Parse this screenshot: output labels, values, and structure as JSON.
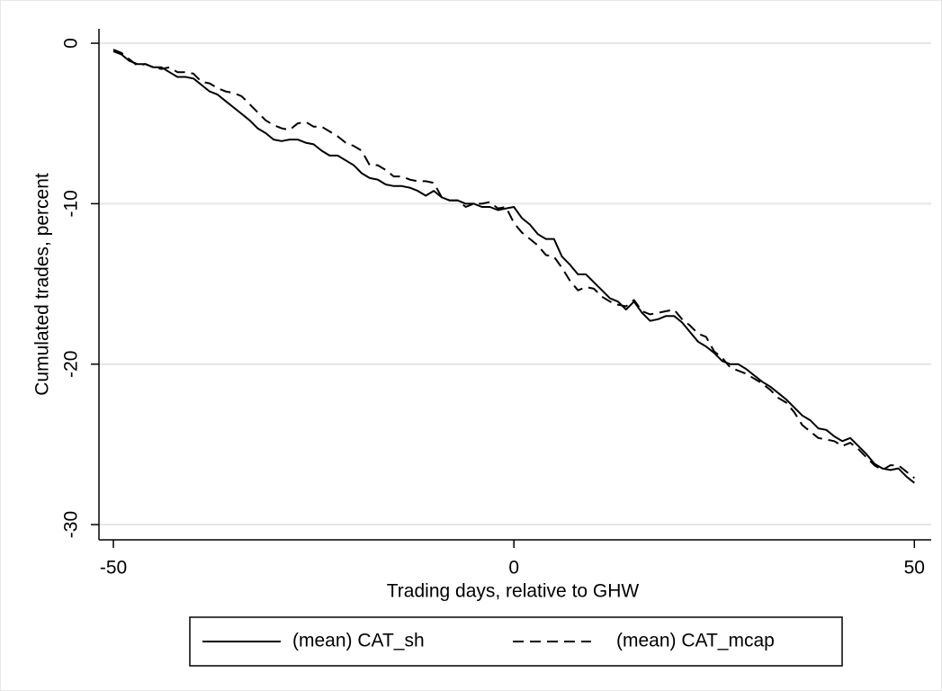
{
  "chart_data": {
    "type": "line",
    "xlabel": "Trading days, relative to GHW",
    "ylabel": "Cumulated trades, percent",
    "x": [
      -50,
      -49,
      -48,
      -47,
      -46,
      -45,
      -44,
      -43,
      -42,
      -41,
      -40,
      -39,
      -38,
      -37,
      -36,
      -35,
      -34,
      -33,
      -32,
      -31,
      -30,
      -29,
      -28,
      -27,
      -26,
      -25,
      -24,
      -23,
      -22,
      -21,
      -20,
      -19,
      -18,
      -17,
      -16,
      -15,
      -14,
      -13,
      -12,
      -11,
      -10,
      -9,
      -8,
      -7,
      -6,
      -5,
      -4,
      -3,
      -2,
      -1,
      0,
      1,
      2,
      3,
      4,
      5,
      6,
      7,
      8,
      9,
      10,
      11,
      12,
      13,
      14,
      15,
      16,
      17,
      18,
      19,
      20,
      21,
      22,
      23,
      24,
      25,
      26,
      27,
      28,
      29,
      30,
      31,
      32,
      33,
      34,
      35,
      36,
      37,
      38,
      39,
      40,
      41,
      42,
      43,
      44,
      45,
      46,
      47,
      48,
      49,
      50
    ],
    "series": [
      {
        "name": "(mean) CAT_sh",
        "color": "#000000",
        "dash": "none",
        "values": [
          -0.5,
          -0.7,
          -1.1,
          -1.3,
          -1.3,
          -1.5,
          -1.5,
          -1.8,
          -2.1,
          -2.1,
          -2.2,
          -2.6,
          -3.0,
          -3.2,
          -3.6,
          -4.0,
          -4.4,
          -4.8,
          -5.3,
          -5.6,
          -6.0,
          -6.1,
          -6.0,
          -6.0,
          -6.2,
          -6.3,
          -6.7,
          -7.0,
          -7.0,
          -7.3,
          -7.6,
          -8.1,
          -8.4,
          -8.5,
          -8.8,
          -8.9,
          -8.9,
          -9.0,
          -9.2,
          -9.5,
          -9.2,
          -9.6,
          -9.8,
          -9.8,
          -10.0,
          -10.0,
          -10.2,
          -10.2,
          -10.4,
          -10.3,
          -10.2,
          -10.9,
          -11.3,
          -11.9,
          -12.2,
          -12.2,
          -13.3,
          -13.8,
          -14.4,
          -14.4,
          -14.9,
          -15.4,
          -15.9,
          -16.1,
          -16.6,
          -16.1,
          -16.8,
          -17.3,
          -17.2,
          -17.0,
          -17.0,
          -17.4,
          -18.0,
          -18.6,
          -18.9,
          -19.3,
          -19.8,
          -20.0,
          -20.0,
          -20.3,
          -20.7,
          -21.1,
          -21.4,
          -21.8,
          -22.2,
          -22.7,
          -23.2,
          -23.5,
          -24.0,
          -24.1,
          -24.5,
          -24.8,
          -24.6,
          -25.1,
          -25.6,
          -26.2,
          -26.5,
          -26.6,
          -26.5,
          -27.0,
          -27.4
        ]
      },
      {
        "name": "(mean) CAT_mcap",
        "color": "#000000",
        "dash": "dashed",
        "values": [
          -0.4,
          -0.6,
          -1.0,
          -1.4,
          -1.3,
          -1.5,
          -1.6,
          -1.5,
          -1.8,
          -1.8,
          -1.9,
          -2.4,
          -2.5,
          -2.8,
          -3.0,
          -3.1,
          -3.3,
          -3.8,
          -4.3,
          -4.8,
          -5.1,
          -5.3,
          -5.4,
          -5.0,
          -4.9,
          -5.2,
          -5.2,
          -5.5,
          -5.8,
          -6.2,
          -6.4,
          -6.7,
          -7.6,
          -7.6,
          -7.9,
          -8.3,
          -8.3,
          -8.5,
          -8.6,
          -8.6,
          -8.7,
          -9.6,
          -9.8,
          -9.8,
          -10.2,
          -10.0,
          -10.0,
          -9.9,
          -10.3,
          -10.2,
          -11.2,
          -11.8,
          -12.2,
          -12.6,
          -13.2,
          -13.3,
          -14.0,
          -14.8,
          -15.4,
          -15.2,
          -15.3,
          -15.8,
          -16.1,
          -16.3,
          -16.4,
          -16.0,
          -16.7,
          -16.9,
          -16.8,
          -16.7,
          -16.6,
          -17.2,
          -17.6,
          -18.1,
          -18.3,
          -19.2,
          -19.6,
          -20.2,
          -20.4,
          -20.6,
          -20.9,
          -21.2,
          -21.6,
          -22.1,
          -22.4,
          -23.0,
          -23.8,
          -24.2,
          -24.6,
          -24.7,
          -24.8,
          -25.1,
          -24.9,
          -25.3,
          -25.8,
          -26.3,
          -26.6,
          -26.3,
          -26.3,
          -26.7,
          -27.1
        ]
      }
    ],
    "xlim": [
      -51.8,
      52.1
    ],
    "ylim": [
      -30.95,
      0.9
    ],
    "xticks": [
      -50,
      0,
      50
    ],
    "yticks": [
      0,
      -10,
      -20,
      -30
    ],
    "grid": true,
    "legend": "bottom"
  }
}
